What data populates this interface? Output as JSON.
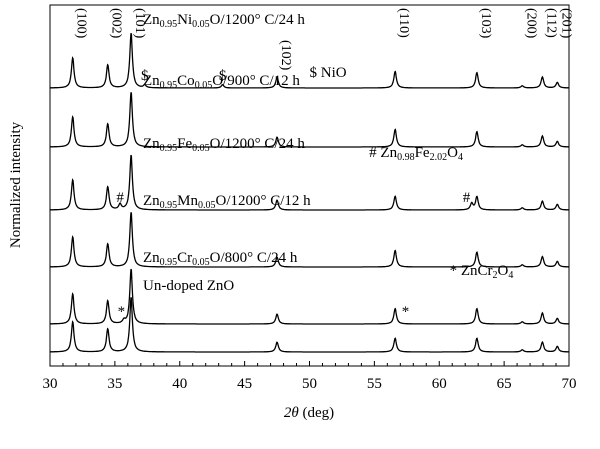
{
  "chart_data": {
    "type": "line",
    "title": "",
    "xlabel_symbol": "2θ",
    "xlabel_unit": "(deg)",
    "ylabel": "Normalized intensity",
    "xlim": [
      30,
      70
    ],
    "xticks": [
      30,
      35,
      40,
      45,
      50,
      55,
      60,
      65,
      70
    ],
    "stacked_offsets": true,
    "grid": false,
    "series": [
      {
        "label_parts": [
          [
            "t",
            "Zn"
          ],
          [
            "s",
            "0.95"
          ],
          [
            "t",
            "Ni"
          ],
          [
            "s",
            "0.05"
          ],
          [
            "t",
            "O/1200° C/24 h"
          ]
        ],
        "peaks": [
          {
            "x": 31.75,
            "h": 0.55
          },
          {
            "x": 34.45,
            "h": 0.42
          },
          {
            "x": 36.25,
            "h": 1.0
          },
          {
            "x": 37.3,
            "h": 0.05
          },
          {
            "x": 43.3,
            "h": 0.06
          },
          {
            "x": 47.5,
            "h": 0.2
          },
          {
            "x": 56.6,
            "h": 0.3
          },
          {
            "x": 62.9,
            "h": 0.28
          },
          {
            "x": 66.4,
            "h": 0.04
          },
          {
            "x": 67.95,
            "h": 0.2
          },
          {
            "x": 69.1,
            "h": 0.1
          }
        ]
      },
      {
        "label_parts": [
          [
            "t",
            "Zn"
          ],
          [
            "s",
            "0.95"
          ],
          [
            "t",
            "Co"
          ],
          [
            "s",
            "0.05"
          ],
          [
            "t",
            "O/900° C/12 h"
          ]
        ],
        "peaks": [
          {
            "x": 31.75,
            "h": 0.55
          },
          {
            "x": 34.45,
            "h": 0.42
          },
          {
            "x": 36.25,
            "h": 1.0
          },
          {
            "x": 47.5,
            "h": 0.18
          },
          {
            "x": 56.6,
            "h": 0.32
          },
          {
            "x": 62.9,
            "h": 0.28
          },
          {
            "x": 66.4,
            "h": 0.04
          },
          {
            "x": 67.95,
            "h": 0.2
          },
          {
            "x": 69.1,
            "h": 0.1
          }
        ]
      },
      {
        "label_parts": [
          [
            "t",
            "Zn"
          ],
          [
            "s",
            "0.95"
          ],
          [
            "t",
            "Fe"
          ],
          [
            "s",
            "0.05"
          ],
          [
            "t",
            "O/1200° C/24 h"
          ]
        ],
        "peaks": [
          {
            "x": 31.75,
            "h": 0.55
          },
          {
            "x": 34.45,
            "h": 0.42
          },
          {
            "x": 35.4,
            "h": 0.1
          },
          {
            "x": 36.25,
            "h": 1.0
          },
          {
            "x": 47.5,
            "h": 0.18
          },
          {
            "x": 56.6,
            "h": 0.25
          },
          {
            "x": 62.5,
            "h": 0.12
          },
          {
            "x": 62.9,
            "h": 0.24
          },
          {
            "x": 66.4,
            "h": 0.04
          },
          {
            "x": 67.95,
            "h": 0.16
          },
          {
            "x": 69.1,
            "h": 0.1
          }
        ]
      },
      {
        "label_parts": [
          [
            "t",
            "Zn"
          ],
          [
            "s",
            "0.95"
          ],
          [
            "t",
            "Mn"
          ],
          [
            "s",
            "0.05"
          ],
          [
            "t",
            "O/1200° C/12 h"
          ]
        ],
        "peaks": [
          {
            "x": 31.75,
            "h": 0.55
          },
          {
            "x": 34.45,
            "h": 0.42
          },
          {
            "x": 36.25,
            "h": 1.0
          },
          {
            "x": 47.5,
            "h": 0.18
          },
          {
            "x": 56.6,
            "h": 0.3
          },
          {
            "x": 62.9,
            "h": 0.27
          },
          {
            "x": 66.4,
            "h": 0.04
          },
          {
            "x": 67.95,
            "h": 0.19
          },
          {
            "x": 69.1,
            "h": 0.1
          }
        ]
      },
      {
        "label_parts": [
          [
            "t",
            "Zn"
          ],
          [
            "s",
            "0.95"
          ],
          [
            "t",
            "Cr"
          ],
          [
            "s",
            "0.05"
          ],
          [
            "t",
            "O/800° C/24 h"
          ]
        ],
        "peaks": [
          {
            "x": 31.75,
            "h": 0.55
          },
          {
            "x": 34.45,
            "h": 0.42
          },
          {
            "x": 35.7,
            "h": 0.06
          },
          {
            "x": 36.25,
            "h": 1.0
          },
          {
            "x": 47.5,
            "h": 0.18
          },
          {
            "x": 56.6,
            "h": 0.28
          },
          {
            "x": 62.9,
            "h": 0.28
          },
          {
            "x": 66.4,
            "h": 0.04
          },
          {
            "x": 67.95,
            "h": 0.2
          },
          {
            "x": 69.1,
            "h": 0.1
          }
        ]
      },
      {
        "label_parts": [
          [
            "t",
            "Un-doped ZnO"
          ]
        ],
        "peaks": [
          {
            "x": 31.75,
            "h": 0.55
          },
          {
            "x": 34.45,
            "h": 0.42
          },
          {
            "x": 36.25,
            "h": 1.0
          },
          {
            "x": 47.5,
            "h": 0.18
          },
          {
            "x": 56.6,
            "h": 0.25
          },
          {
            "x": 62.9,
            "h": 0.25
          },
          {
            "x": 66.4,
            "h": 0.04
          },
          {
            "x": 67.95,
            "h": 0.18
          },
          {
            "x": 69.1,
            "h": 0.1
          }
        ]
      }
    ],
    "hkl_labels": [
      {
        "text": "(100)",
        "x": 31.75
      },
      {
        "text": "(002)",
        "x": 34.45
      },
      {
        "text": "(101)",
        "x": 36.25
      },
      {
        "text": "(102)",
        "x": 47.5
      },
      {
        "text": "(110)",
        "x": 56.6
      },
      {
        "text": "(103)",
        "x": 62.9
      },
      {
        "text": "(200)",
        "x": 66.4
      },
      {
        "text": "(112)",
        "x": 67.95
      },
      {
        "text": "(201)",
        "x": 69.1
      }
    ],
    "markers": [
      {
        "text": "$",
        "x": 37.3,
        "series": 0
      },
      {
        "text": "$",
        "x": 43.3,
        "series": 0
      },
      {
        "text": "#",
        "x": 35.4,
        "series": 2
      },
      {
        "text": "#",
        "x": 62.1,
        "series": 2
      },
      {
        "text": "*",
        "x": 35.5,
        "series": 4
      },
      {
        "text": "*",
        "x": 57.4,
        "series": 4
      }
    ],
    "annotations": [
      {
        "series": 0,
        "parts": [
          [
            "t",
            "$ NiO"
          ]
        ],
        "x": 50.0
      },
      {
        "series": 2,
        "parts": [
          [
            "t",
            "# Zn"
          ],
          [
            "s",
            "0.98"
          ],
          [
            "t",
            "Fe"
          ],
          [
            "s",
            "2.02"
          ],
          [
            "t",
            "O"
          ],
          [
            "s",
            "4"
          ]
        ],
        "x": 54.6
      },
      {
        "series": 4,
        "parts": [
          [
            "t",
            "* ZnCr"
          ],
          [
            "s",
            "2"
          ],
          [
            "t",
            "O"
          ],
          [
            "s",
            "4"
          ]
        ],
        "x": 60.8
      }
    ]
  }
}
